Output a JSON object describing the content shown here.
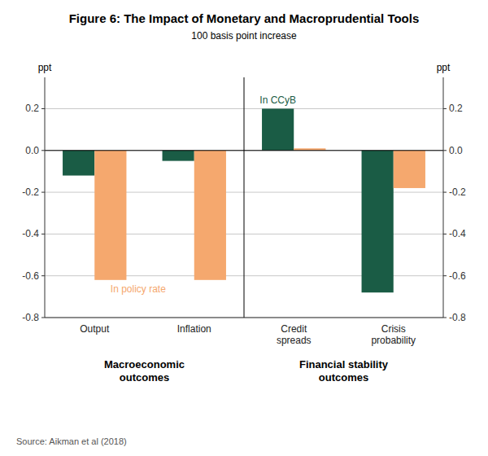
{
  "chart_data": {
    "type": "bar",
    "title": "Figure 6: The Impact of Monetary and Macroprudential Tools",
    "subtitle": "100 basis point increase",
    "ylabel": "ppt",
    "categories": [
      "Output",
      "Inflation",
      "Credit\nspreads",
      "Crisis\nprobability"
    ],
    "series": [
      {
        "name": "In CCyB",
        "color": "#1a5c45",
        "values": [
          -0.12,
          -0.05,
          0.2,
          -0.68
        ]
      },
      {
        "name": "In policy rate",
        "color": "#f5a86e",
        "values": [
          -0.62,
          -0.62,
          0.01,
          -0.18
        ]
      }
    ],
    "ylim": [
      -0.8,
      0.35
    ],
    "yticks": [
      -0.8,
      -0.6,
      -0.4,
      -0.2,
      {
        "value": 0.0,
        "label": "0.0"
      },
      0.2
    ],
    "grid": true,
    "annotations": [
      "Macroeconomic\noutcomes",
      "Financial stability\noutcomes"
    ],
    "source": "Source: Aikman et al (2018)"
  }
}
